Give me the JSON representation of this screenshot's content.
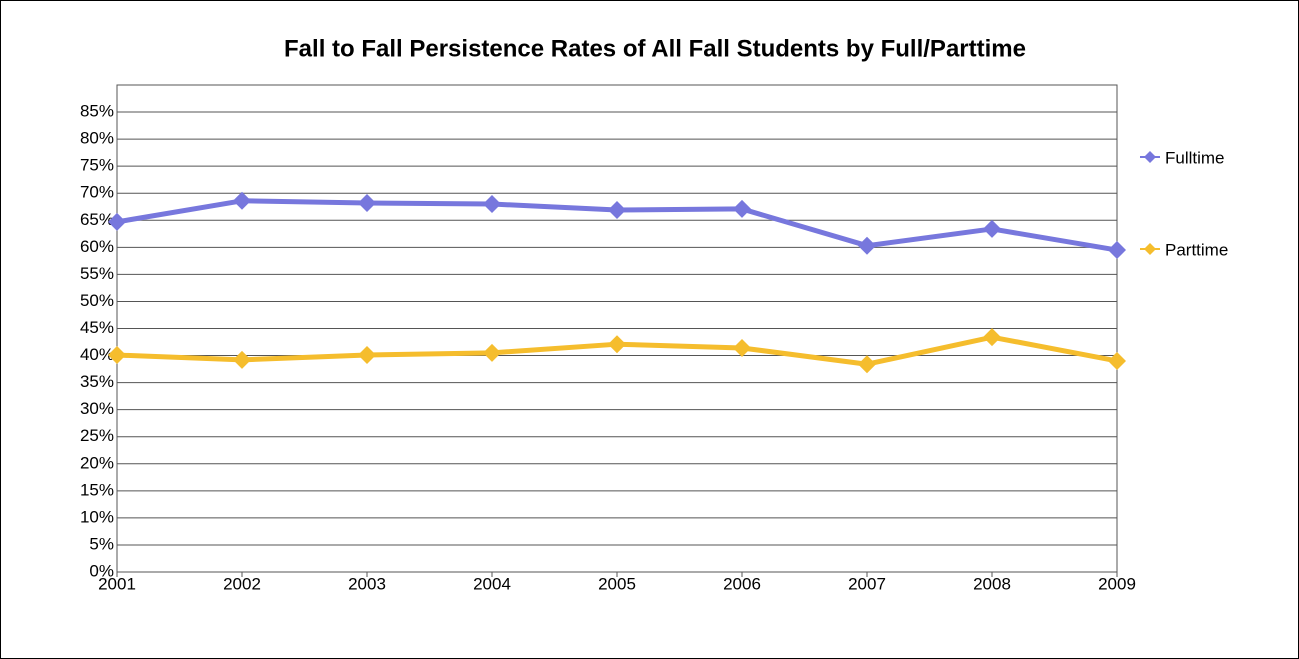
{
  "chart_data": {
    "type": "line",
    "title": "Fall to Fall Persistence Rates of All Fall Students by Full/Parttime",
    "x": [
      2001,
      2002,
      2003,
      2004,
      2005,
      2006,
      2007,
      2008,
      2009
    ],
    "series": [
      {
        "name": "Fulltime",
        "color": "#7777dd",
        "values": [
          64.7,
          68.6,
          68.2,
          68.0,
          66.9,
          67.1,
          60.3,
          63.4,
          59.5
        ]
      },
      {
        "name": "Parttime",
        "color": "#f5bd2d",
        "values": [
          40.1,
          39.2,
          40.1,
          40.5,
          42.1,
          41.4,
          38.4,
          43.4,
          39.0
        ]
      }
    ],
    "xlim": [
      2001,
      2009
    ],
    "xticks": [
      2001,
      2002,
      2003,
      2004,
      2005,
      2006,
      2007,
      2008,
      2009
    ],
    "ylim": [
      0,
      90
    ],
    "yticks": [
      {
        "value": 0,
        "label": "0%"
      },
      {
        "value": 5,
        "label": "5%"
      },
      {
        "value": 10,
        "label": "10%"
      },
      {
        "value": 15,
        "label": "15%"
      },
      {
        "value": 20,
        "label": "20%"
      },
      {
        "value": 25,
        "label": "25%"
      },
      {
        "value": 30,
        "label": "30%"
      },
      {
        "value": 35,
        "label": "35%"
      },
      {
        "value": 40,
        "label": "40%"
      },
      {
        "value": 45,
        "label": "45%"
      },
      {
        "value": 50,
        "label": "50%"
      },
      {
        "value": 55,
        "label": "55%"
      },
      {
        "value": 60,
        "label": "60%"
      },
      {
        "value": 65,
        "label": "65%"
      },
      {
        "value": 70,
        "label": "70%"
      },
      {
        "value": 75,
        "label": "75%"
      },
      {
        "value": 80,
        "label": "80%"
      },
      {
        "value": 85,
        "label": "85%"
      }
    ],
    "grid": true,
    "legend": "right"
  }
}
